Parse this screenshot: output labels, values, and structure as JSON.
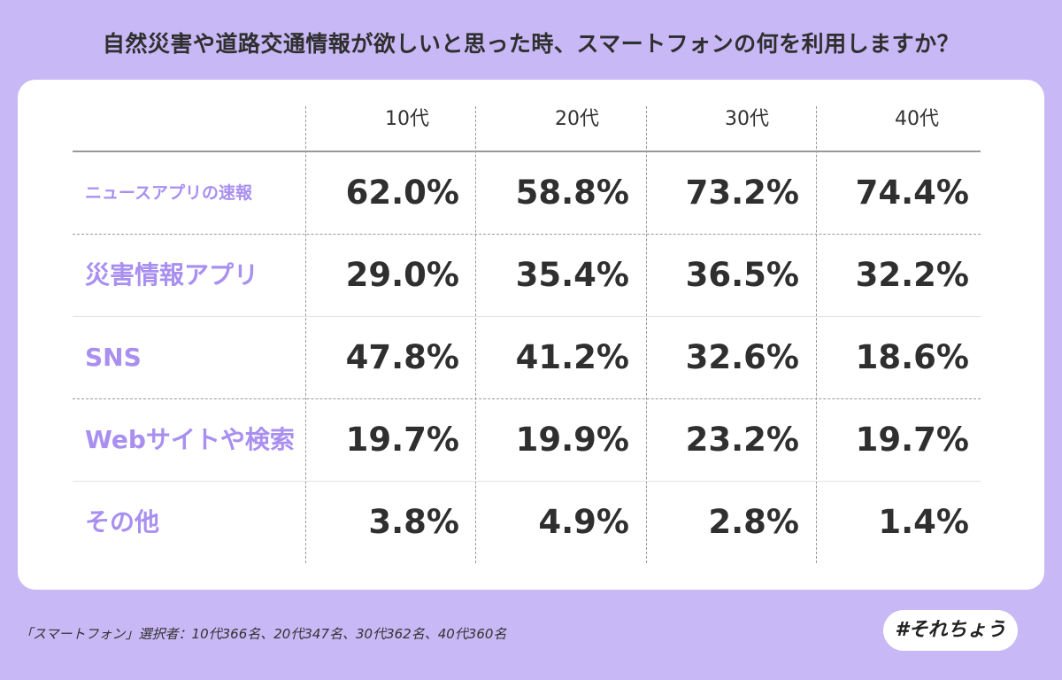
{
  "title": "自然災害や道路交通情報が欲しいと思った時、スマートフォンの何を利用しますか？",
  "chart_data": {
    "type": "table",
    "columns": [
      "10代",
      "20代",
      "30代",
      "40代"
    ],
    "rows": [
      {
        "label": "ニュースアプリの速報",
        "values": [
          "62.0%",
          "58.8%",
          "73.2%",
          "74.4%"
        ]
      },
      {
        "label": "災害情報アプリ",
        "values": [
          "29.0%",
          "35.4%",
          "36.5%",
          "32.2%"
        ]
      },
      {
        "label": "SNS",
        "values": [
          "47.8%",
          "41.2%",
          "32.6%",
          "18.6%"
        ]
      },
      {
        "label": "Webサイトや検索",
        "values": [
          "19.7%",
          "19.9%",
          "23.2%",
          "19.7%"
        ]
      },
      {
        "label": "その他",
        "values": [
          "3.8%",
          "4.9%",
          "2.8%",
          "1.4%"
        ]
      }
    ]
  },
  "footnote": "「スマートフォン」選択者：10代366名、20代347名、30代362名、40代360名",
  "hashtag": "#それちょう",
  "colors": {
    "background": "#c8b8f5",
    "label_accent": "#a98ff0",
    "value_text": "#2f2f2f"
  }
}
